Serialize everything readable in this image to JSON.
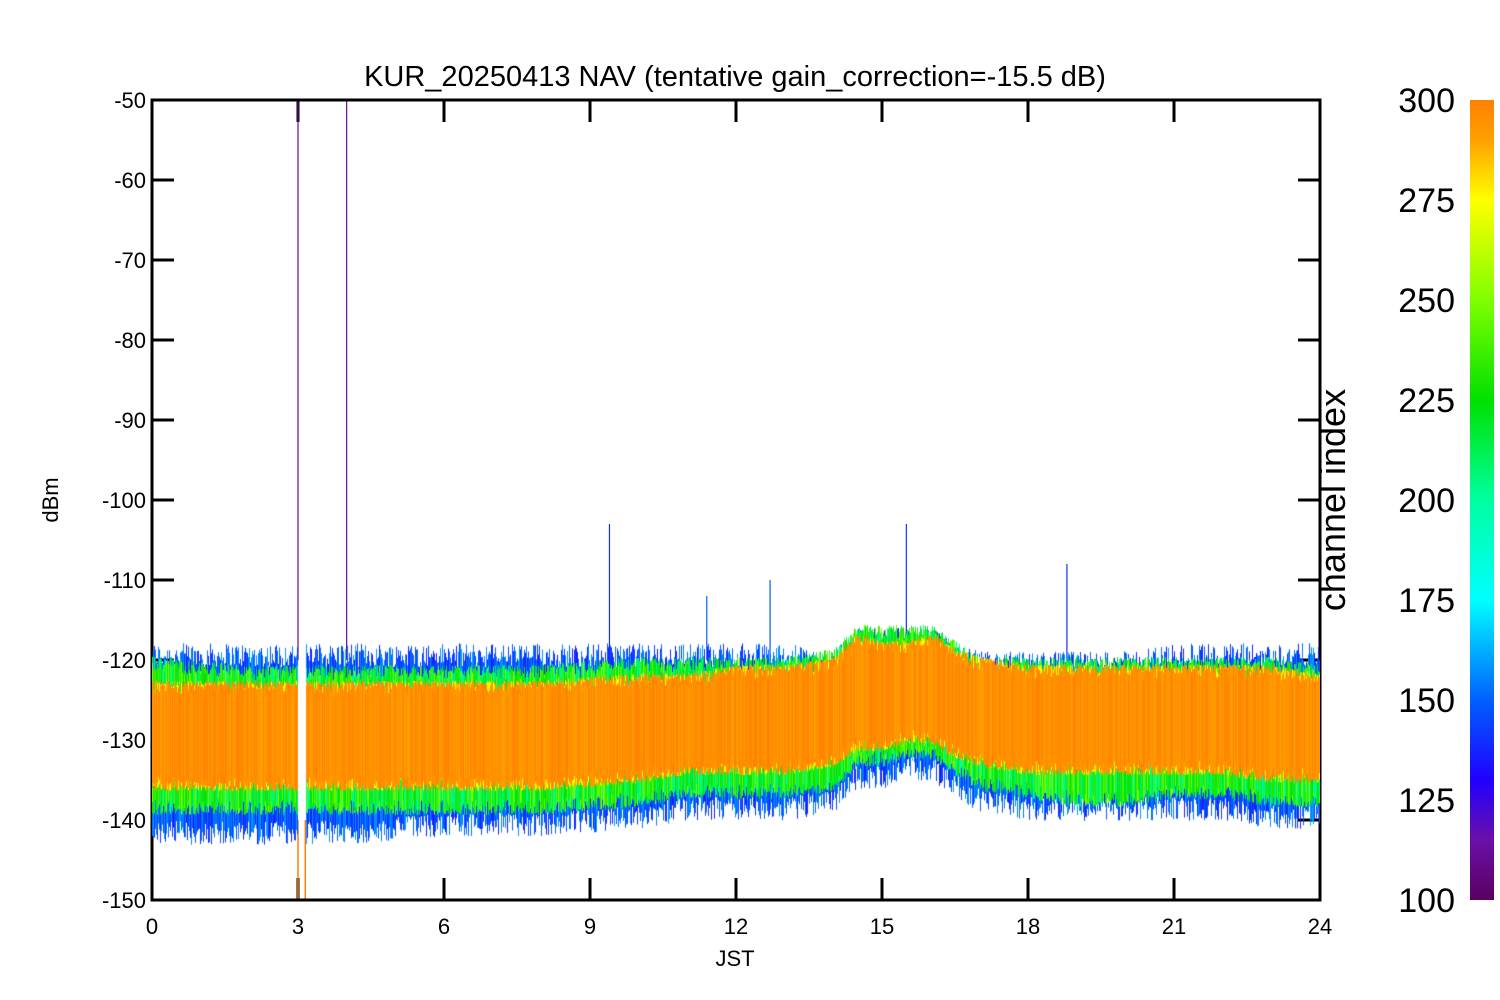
{
  "chart_data": {
    "type": "line",
    "title": "KUR_20250413 NAV (tentative gain_correction=-15.5 dB)",
    "xlabel": "JST",
    "ylabel": "dBm",
    "xlim": [
      0,
      24
    ],
    "ylim": [
      -150,
      -50
    ],
    "x_ticks": [
      0,
      3,
      6,
      9,
      12,
      15,
      18,
      21,
      24
    ],
    "y_ticks": [
      -50,
      -60,
      -70,
      -80,
      -90,
      -100,
      -110,
      -120,
      -130,
      -140,
      -150
    ],
    "grid": false,
    "colorbar": {
      "label": "channel index",
      "range": [
        100,
        300
      ],
      "ticks": [
        300,
        275,
        250,
        225,
        200,
        175,
        150,
        125,
        100
      ],
      "colormap": "rainbow",
      "stops": [
        {
          "value": 100,
          "color": "#5a0060"
        },
        {
          "value": 115,
          "color": "#6a10a8"
        },
        {
          "value": 130,
          "color": "#2000ff"
        },
        {
          "value": 150,
          "color": "#0060ff"
        },
        {
          "value": 175,
          "color": "#00ffff"
        },
        {
          "value": 200,
          "color": "#00ffa0"
        },
        {
          "value": 225,
          "color": "#00e000"
        },
        {
          "value": 250,
          "color": "#80ff00"
        },
        {
          "value": 275,
          "color": "#ffff00"
        },
        {
          "value": 290,
          "color": "#ffa000"
        },
        {
          "value": 300,
          "color": "#ff8000"
        }
      ]
    },
    "envelope": {
      "description_points_x": [
        0,
        2,
        4,
        6,
        8,
        10,
        11,
        12,
        13,
        14,
        14.5,
        15,
        15.5,
        16,
        16.5,
        17,
        18,
        19,
        20,
        21,
        22,
        23,
        24
      ],
      "upper_blue": [
        -120,
        -120,
        -120,
        -120,
        -120,
        -120,
        -120,
        -120,
        -120,
        -121,
        -118,
        -118,
        -118,
        -118,
        -120,
        -121,
        -121,
        -121,
        -121,
        -120,
        -120,
        -120,
        -120
      ],
      "upper_green": [
        -121,
        -122,
        -122,
        -122,
        -122,
        -121,
        -121,
        -121,
        -121,
        -120,
        -117,
        -117,
        -117,
        -117,
        -119,
        -121,
        -121,
        -121,
        -121,
        -121,
        -121,
        -121,
        -122
      ],
      "core_top": [
        -124,
        -124,
        -124,
        -124,
        -124,
        -123,
        -123,
        -122,
        -122,
        -121,
        -118,
        -119,
        -119,
        -118,
        -120,
        -121,
        -122,
        -122,
        -122,
        -122,
        -122,
        -122,
        -123
      ],
      "core_bottom": [
        -135,
        -135,
        -135,
        -135,
        -135,
        -134,
        -133,
        -133,
        -133,
        -132,
        -130,
        -130,
        -129,
        -129,
        -131,
        -132,
        -133,
        -133,
        -133,
        -133,
        -133,
        -134,
        -134
      ],
      "lower_green": [
        -138,
        -138,
        -138,
        -138,
        -138,
        -137,
        -136,
        -136,
        -136,
        -135,
        -132,
        -132,
        -131,
        -131,
        -133,
        -135,
        -136,
        -137,
        -137,
        -136,
        -136,
        -137,
        -137
      ],
      "lower_blue": [
        -141,
        -141,
        -141,
        -140,
        -140,
        -139,
        -138,
        -138,
        -138,
        -137,
        -134,
        -134,
        -133,
        -133,
        -135,
        -137,
        -138,
        -138,
        -138,
        -138,
        -138,
        -139,
        -139
      ]
    },
    "spikes": [
      {
        "x": 3.0,
        "y": -50,
        "channel": 110
      },
      {
        "x": 4.0,
        "y": -50,
        "channel": 110
      },
      {
        "x": 9.4,
        "y": -103,
        "channel": 140
      },
      {
        "x": 15.5,
        "y": -103,
        "channel": 140
      },
      {
        "x": 18.8,
        "y": -108,
        "channel": 140
      },
      {
        "x": 12.7,
        "y": -110,
        "channel": 150
      },
      {
        "x": 11.4,
        "y": -112,
        "channel": 150
      }
    ],
    "gap_x": [
      3.0,
      3.15
    ]
  }
}
